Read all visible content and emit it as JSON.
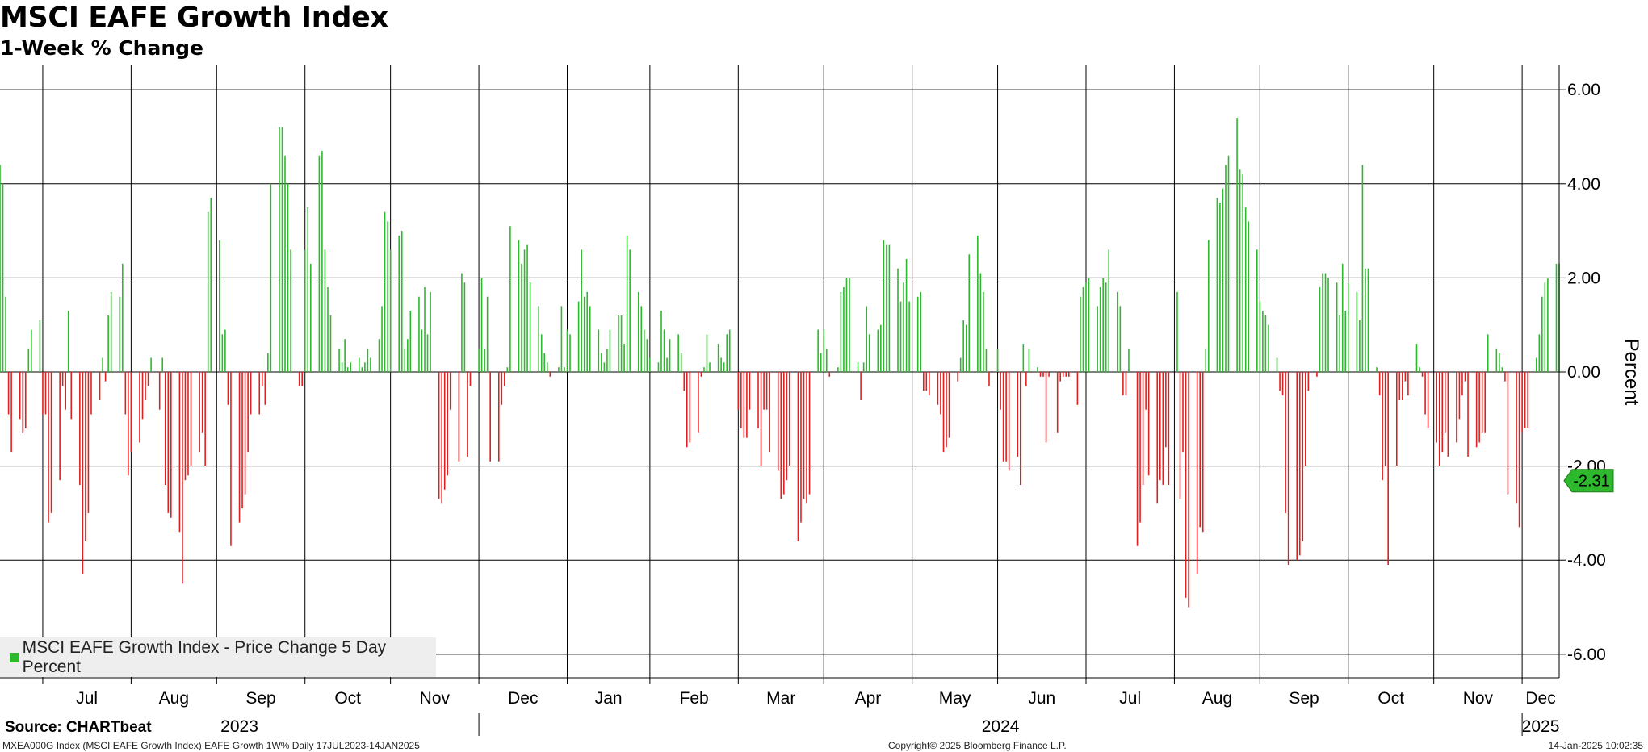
{
  "title": "MSCI EAFE Growth Index",
  "subtitle": "1-Week % Change",
  "legend_label": "MSCI EAFE Growth Index - Price Change 5 Day Percent",
  "source": "Source: CHARTbeat",
  "footer": {
    "left": "MXEA000G Index (MSCI EAFE Growth Index) EAFE Growth 1W%  Daily 17JUL2023-14JAN2025",
    "center": "Copyright© 2025 Bloomberg Finance L.P.",
    "right": "14-Jan-2025 10:02:35"
  },
  "colors": {
    "positive": "#2db82d",
    "negative": "#e02020",
    "grid": "#000000"
  },
  "chart_data": {
    "type": "bar",
    "ylabel": "Percent",
    "ylim": [
      -6.5,
      6.5
    ],
    "y_ticks": [
      6.0,
      4.0,
      2.0,
      0.0,
      -2.0,
      -4.0,
      -6.0
    ],
    "y_tick_labels": [
      "6.00",
      "4.00",
      "2.00",
      "0.00",
      "-2.00",
      "-4.00",
      "-6.00"
    ],
    "x_range": [
      "2023-07-17",
      "2025-01-14"
    ],
    "month_labels": [
      "Jul",
      "Aug",
      "Sep",
      "Oct",
      "Nov",
      "Dec",
      "Jan",
      "Feb",
      "Mar",
      "Apr",
      "May",
      "Jun",
      "Jul",
      "Aug",
      "Sep",
      "Oct",
      "Nov",
      "Dec",
      "Jan"
    ],
    "year_labels": [
      "2023",
      "2024",
      "2025"
    ],
    "last_value_label": "-2.31",
    "series": [
      {
        "name": "MSCI EAFE Growth Index - Price Change 5 Day Percent",
        "values": [
          4.4,
          4.0,
          1.6,
          -0.9,
          -1.7,
          -1.0,
          -1.3,
          -1.2,
          0.5,
          0.9,
          1.1,
          -0.9,
          -0.9,
          -3.2,
          -3.0,
          -2.3,
          -0.3,
          -0.8,
          1.3,
          -1.0,
          -2.4,
          -4.3,
          -3.6,
          -3.0,
          -0.9,
          -0.6,
          0.3,
          -0.2,
          1.2,
          1.7,
          1.6,
          2.3,
          -0.9,
          -2.2,
          -1.7,
          -1.5,
          -1.0,
          -0.6,
          -0.3,
          0.3,
          -0.8,
          0.3,
          -2.4,
          -3.0,
          -3.1,
          -3.4,
          -4.5,
          -2.3,
          -2.2,
          -2.0,
          -1.7,
          -1.3,
          -2.0,
          3.4,
          3.7,
          2.8,
          0.8,
          0.9,
          -0.7,
          -3.7,
          -3.2,
          -2.9,
          -2.6,
          -1.7,
          -0.9,
          -0.9,
          -0.3,
          -0.7,
          0.4,
          4.0,
          5.2,
          5.2,
          4.6,
          4.0,
          2.6,
          -0.3,
          -0.3,
          2.6,
          3.5,
          2.3,
          4.6,
          4.7,
          2.6,
          1.8,
          1.2,
          0.5,
          0.2,
          0.7,
          0.1,
          0.2,
          0.3,
          0.1,
          0.2,
          0.5,
          0.3,
          0.7,
          1.4,
          3.4,
          3.2,
          2.6,
          2.9,
          3.0,
          0.5,
          0.7,
          1.3,
          1.6,
          0.9,
          1.8,
          0.8,
          1.7,
          -2.7,
          -2.8,
          -2.5,
          -2.2,
          -0.8,
          -1.9,
          2.1,
          1.9,
          -1.8,
          -0.3,
          0.5,
          2.0,
          0.5,
          1.6,
          -1.9,
          -1.9,
          -0.7,
          -0.3,
          0.1,
          3.1,
          2.8,
          2.3,
          2.6,
          2.7,
          1.9,
          1.4,
          0.8,
          0.4,
          0.2,
          -0.1,
          0.1,
          1.4,
          0.1,
          0.9,
          0.8,
          1.5,
          2.6,
          1.6,
          1.7,
          1.4,
          0.9,
          0.4,
          0.2,
          0.5,
          0.9,
          1.2,
          1.2,
          0.6,
          2.9,
          2.6,
          1.7,
          1.4,
          0.9,
          0.7,
          0.3,
          0.2,
          1.3,
          0.9,
          0.3,
          0.7,
          0.8,
          0.4,
          -0.4,
          -1.6,
          -1.5,
          -1.3,
          -0.1,
          0.1,
          0.8,
          0.2,
          0.6,
          0.3,
          0.2,
          0.8,
          0.9,
          -0.8,
          -1.2,
          -1.4,
          -1.4,
          -0.8,
          -1.2,
          -2.0,
          -0.8,
          -0.8,
          -1.7,
          -2.1,
          -2.7,
          -2.6,
          -2.3,
          -2.0,
          -3.6,
          -3.2,
          -2.7,
          -2.8,
          -2.6,
          0.9,
          0.4,
          0.9,
          0.5,
          -0.1,
          0.1,
          1.7,
          1.8,
          2.0,
          2.0,
          0.2,
          -0.6,
          0.2,
          1.4,
          0.8,
          0.9,
          1.0,
          2.8,
          2.7,
          2.7,
          2.2,
          1.5,
          1.9,
          2.4,
          1.5,
          1.6,
          1.7,
          -0.4,
          -0.4,
          -0.5,
          -0.7,
          -0.9,
          -1.7,
          -1.6,
          -1.4,
          -0.2,
          0.3,
          1.1,
          1.0,
          2.5,
          2.9,
          2.1,
          1.7,
          0.5,
          -0.3,
          0.5,
          -0.8,
          -1.9,
          -1.9,
          -2.1,
          -1.8,
          -2.4,
          0.6,
          -0.3,
          0.5,
          0.1,
          -0.1,
          -0.1,
          -1.5,
          -0.1,
          -1.3,
          -0.2,
          -0.1,
          -0.1,
          -0.1,
          -0.7,
          1.6,
          1.8,
          1.9,
          2.0,
          1.4,
          1.8,
          2.0,
          1.9,
          2.6,
          1.7,
          1.4,
          -0.5,
          -0.5,
          0.5,
          -3.7,
          -3.2,
          -2.4,
          -0.8,
          -2.2,
          -2.8,
          -2.3,
          -2.4,
          -1.6,
          -2.4,
          1.7,
          -2.7,
          -1.7,
          -4.8,
          -5.0,
          -4.3,
          -3.3,
          -3.4,
          0.5,
          2.8,
          3.7,
          3.6,
          3.9,
          4.4,
          4.6,
          5.4,
          4.3,
          4.2,
          3.5,
          3.2,
          2.6,
          1.5,
          1.3,
          1.2,
          1.0,
          0.3,
          -0.4,
          -0.5,
          -3.0,
          -4.1,
          -4.0,
          -3.9,
          -3.6,
          -2.0,
          -0.4,
          -0.1,
          1.8,
          2.1,
          2.1,
          2.0,
          1.9,
          1.2,
          2.3,
          1.3,
          1.9,
          1.7,
          1.1,
          4.4,
          2.2,
          2.2,
          0.1,
          -0.5,
          -2.3,
          -2.0,
          -4.1,
          -2.0,
          -0.6,
          -0.6,
          -0.2,
          -0.5,
          0.6,
          0.1,
          -0.1,
          -0.9,
          -1.2,
          -1.5,
          -2.0,
          -1.7,
          -1.3,
          -1.8,
          -1.5,
          -1.0,
          -0.5,
          -0.2,
          -1.8,
          -1.6,
          -1.5,
          -1.3,
          -1.3,
          0.8,
          0.5,
          0.4,
          0.1,
          -0.2,
          -2.6,
          -2.8,
          -3.3,
          -1.3,
          -1.2,
          -1.2,
          0.3,
          0.8,
          1.6,
          1.9,
          2.0,
          2.3,
          2.3,
          2.5,
          3.5,
          3.2,
          3.0,
          2.4,
          2.0,
          -0.6,
          -0.7,
          -0.8,
          -1.0,
          -0.6,
          -1.8,
          -1.9,
          -1.3,
          -0.7,
          -1.0,
          -0.7,
          -1.9,
          -3.9,
          -3.7,
          -3.5,
          -3.0,
          -0.4,
          1.6,
          0.1,
          0.1,
          0.2,
          -1.3,
          1.0,
          1.4,
          0.7,
          0.9,
          0.1,
          -2.31
        ]
      }
    ]
  }
}
